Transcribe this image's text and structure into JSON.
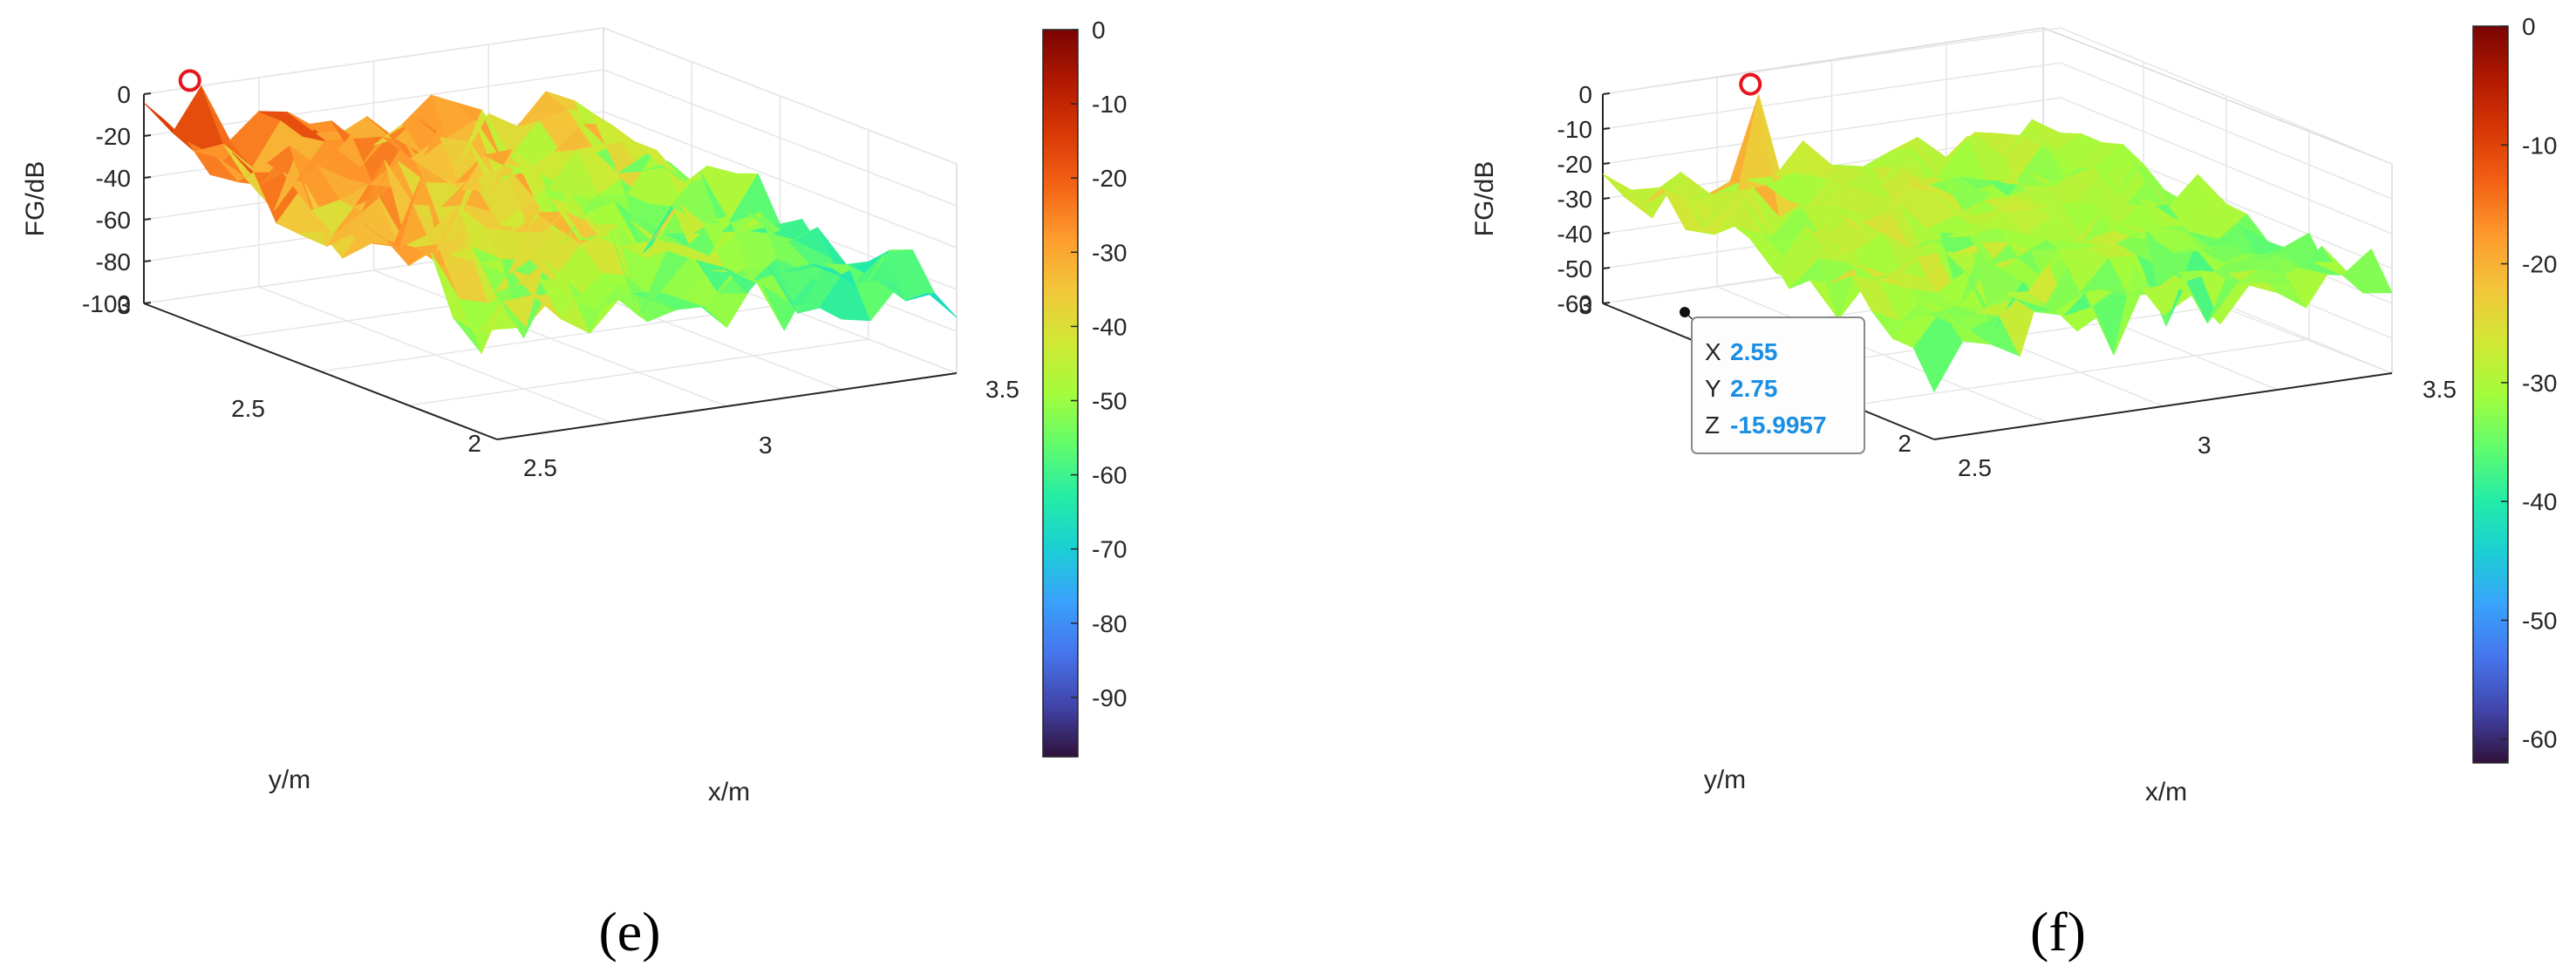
{
  "colors": {
    "axis": "#262626",
    "grid": "#e6e6e6",
    "marker": "#e8141c",
    "datatip_value": "#1a8fe3",
    "colormap": [
      "#30123b",
      "#4145ab",
      "#4675ed",
      "#39a2fc",
      "#1bcfd4",
      "#24eca6",
      "#61fc6c",
      "#a4fc3b",
      "#d1e834",
      "#f3c63a",
      "#fe9b2d",
      "#f36315",
      "#d93806",
      "#b11901",
      "#7a0403"
    ]
  },
  "chart_data": [
    {
      "panel_label": "(e)",
      "type": "surface3d",
      "zlabel": "FG/dB",
      "xlabel": "x/m",
      "ylabel": "y/m",
      "xlim": [
        2.5,
        3.5
      ],
      "ylim": [
        2,
        3
      ],
      "zlim": [
        -100,
        0
      ],
      "z_ticks": [
        "0",
        "-20",
        "-40",
        "-60",
        "-80",
        "-100"
      ],
      "x_ticks": [
        "2.5",
        "3",
        "3.5"
      ],
      "y_ticks": [
        "3",
        "2.5",
        "2"
      ],
      "colorbar": {
        "range": [
          -98,
          0
        ],
        "ticks": [
          "0",
          "-10",
          "-20",
          "-30",
          "-40",
          "-50",
          "-60",
          "-70",
          "-80",
          "-90"
        ]
      },
      "peak_marker": {
        "x": 2.6,
        "y": 3.0,
        "z": 0
      },
      "seed": 7,
      "surface": {
        "back_mean": -18,
        "front_mean": -62,
        "roughness": 14,
        "floor": -96
      },
      "datatip": null
    },
    {
      "panel_label": "(f)",
      "type": "surface3d",
      "zlabel": "FG/dB",
      "xlabel": "x/m",
      "ylabel": "y/m",
      "xlim": [
        2.5,
        3.5
      ],
      "ylim": [
        2,
        3
      ],
      "zlim": [
        -60,
        0
      ],
      "z_ticks": [
        "0",
        "-10",
        "-20",
        "-30",
        "-40",
        "-50",
        "-60"
      ],
      "x_ticks": [
        "2.5",
        "3",
        "3.5"
      ],
      "y_ticks": [
        "3",
        "2.5",
        "2"
      ],
      "colorbar": {
        "range": [
          -62,
          0
        ],
        "ticks": [
          "0",
          "-10",
          "-20",
          "-30",
          "-40",
          "-50",
          "-60"
        ]
      },
      "peak_marker": {
        "x": 2.75,
        "y": 2.9,
        "z": 0
      },
      "seed": 19,
      "surface": {
        "back_mean": -27,
        "front_mean": -33,
        "roughness": 7,
        "floor": -58
      },
      "datatip": {
        "x_label": "X",
        "x_value": "2.55",
        "y_label": "Y",
        "y_value": "2.75",
        "z_label": "Z",
        "z_value": "-15.9957"
      }
    }
  ]
}
